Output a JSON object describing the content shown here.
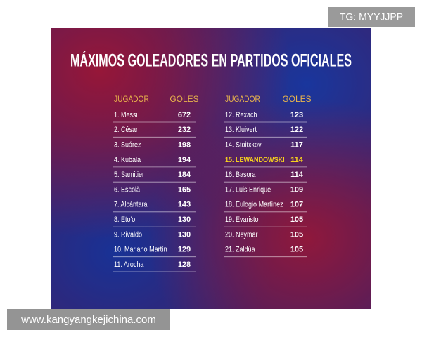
{
  "watermark_top": "TG: MYYJJPP",
  "title": "MÁXIMOS GOLEADORES EN PARTIDOS OFICIALES",
  "tables": [
    {
      "headers": [
        "JUGADOR",
        "GOLES"
      ],
      "rows": [
        [
          "1. Messi",
          672
        ],
        [
          "2. César",
          232
        ],
        [
          "3. Suárez",
          198
        ],
        [
          "4. Kubala",
          194
        ],
        [
          "5. Samitier",
          184
        ],
        [
          "6. Escolà",
          165
        ],
        [
          "7. Alcántara",
          143
        ],
        [
          "8. Eto'o",
          130
        ],
        [
          "9. Rivaldo",
          130
        ],
        [
          "10. Mariano Martín",
          129
        ],
        [
          "11. Arocha",
          128
        ]
      ]
    },
    {
      "headers": [
        "JUGADOR",
        "GOLES"
      ],
      "rows": [
        [
          "12. Rexach",
          123
        ],
        [
          "13. Kluivert",
          122
        ],
        [
          "14. Stoitxkov",
          117
        ],
        [
          "15. LEWANDOWSKI",
          114
        ],
        [
          "16. Basora",
          114
        ],
        [
          "17. Luis Enrique",
          109
        ],
        [
          "18. Eulogio Martínez",
          107
        ],
        [
          "19. Evaristo",
          105
        ],
        [
          "20. Neymar",
          105
        ],
        [
          "21. Zaldúa",
          105
        ]
      ],
      "highlighted_row": 3
    }
  ],
  "watermark_bottom": "www.kangyangkejichina.com"
}
